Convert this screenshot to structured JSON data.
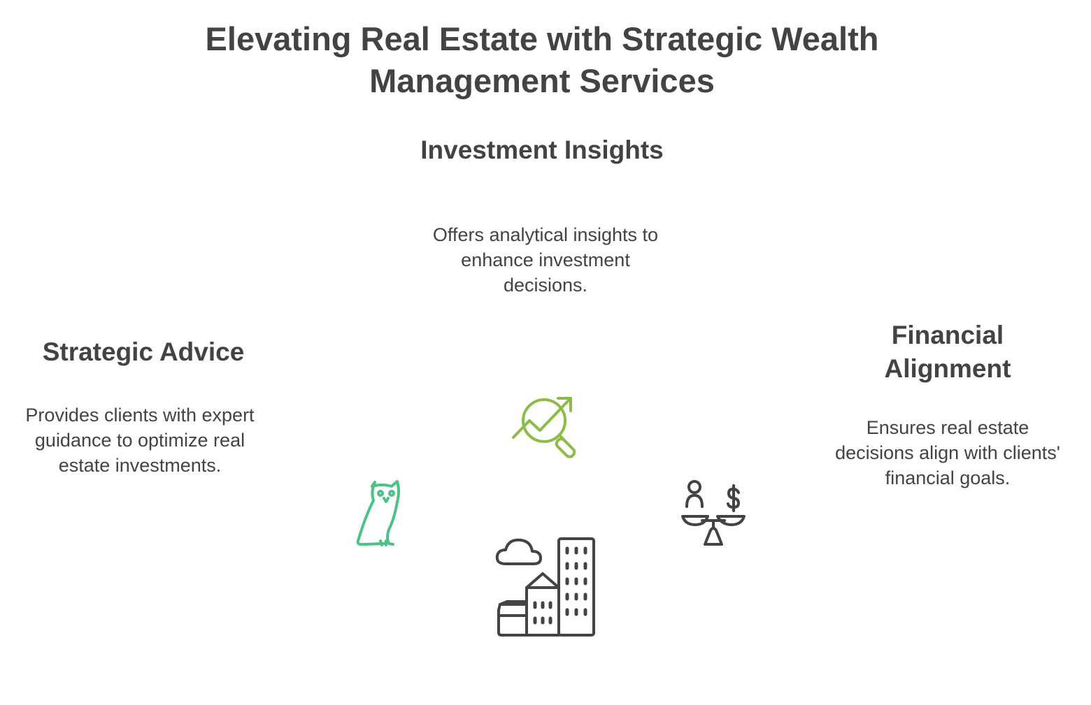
{
  "title": "Elevating Real Estate with Strategic Wealth Management Services",
  "nodes": {
    "investment": {
      "title": "Investment Insights",
      "description": "Offers analytical insights to enhance investment decisions."
    },
    "strategic": {
      "title": "Strategic Advice",
      "description": "Provides clients with expert guidance to optimize real estate investments."
    },
    "financial": {
      "title": "Financial Alignment",
      "description": "Ensures real estate decisions align with clients' financial goals."
    }
  },
  "icons": {
    "investment": "chart-magnifier-icon",
    "strategic": "owl-icon",
    "financial": "balance-scale-icon",
    "center": "city-buildings-icon"
  },
  "colors": {
    "text": "#434343",
    "investment_icon": "#8cbc45",
    "strategic_icon": "#4dc287",
    "financial_icon": "#434343",
    "center_icon": "#434343"
  }
}
